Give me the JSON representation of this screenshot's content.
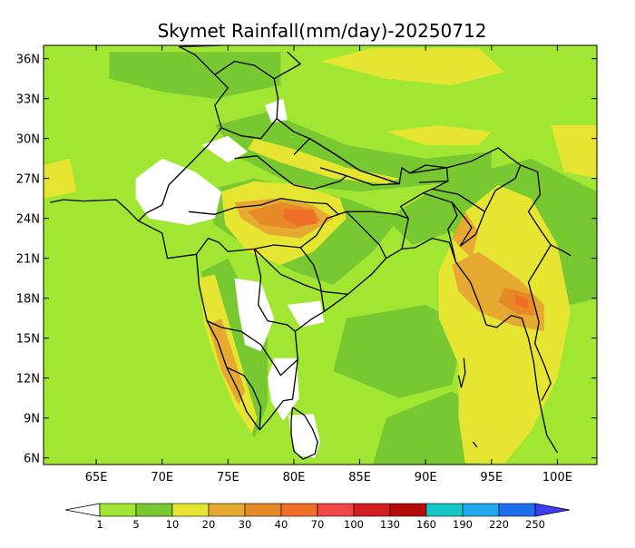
{
  "map": {
    "title": "Skymet Rainfall(mm/day)-20250712",
    "lat_ticks": [
      "36N",
      "33N",
      "30N",
      "27N",
      "24N",
      "21N",
      "18N",
      "15N",
      "12N",
      "9N",
      "6N"
    ],
    "lat_values": [
      36,
      33,
      30,
      27,
      24,
      21,
      18,
      15,
      12,
      9,
      6
    ],
    "lon_ticks": [
      "65E",
      "70E",
      "75E",
      "80E",
      "85E",
      "90E",
      "95E",
      "100E"
    ],
    "lon_values": [
      65,
      70,
      75,
      80,
      85,
      90,
      95,
      100
    ],
    "extent": {
      "lon_min": 61,
      "lon_max": 103,
      "lat_min": 5.5,
      "lat_max": 37
    }
  },
  "legend": {
    "labels": [
      "1",
      "5",
      "10",
      "20",
      "30",
      "40",
      "70",
      "100",
      "130",
      "160",
      "190",
      "220",
      "250"
    ],
    "colors": [
      "#a0e632",
      "#78c832",
      "#e6e632",
      "#e6aa32",
      "#e68a28",
      "#f06e28",
      "#f04646",
      "#d21e1e",
      "#b40a0a",
      "#14c8c8",
      "#1eaaf0",
      "#1e6ef0",
      "#3c3cf0"
    ],
    "low_color": "#ffffff"
  }
}
